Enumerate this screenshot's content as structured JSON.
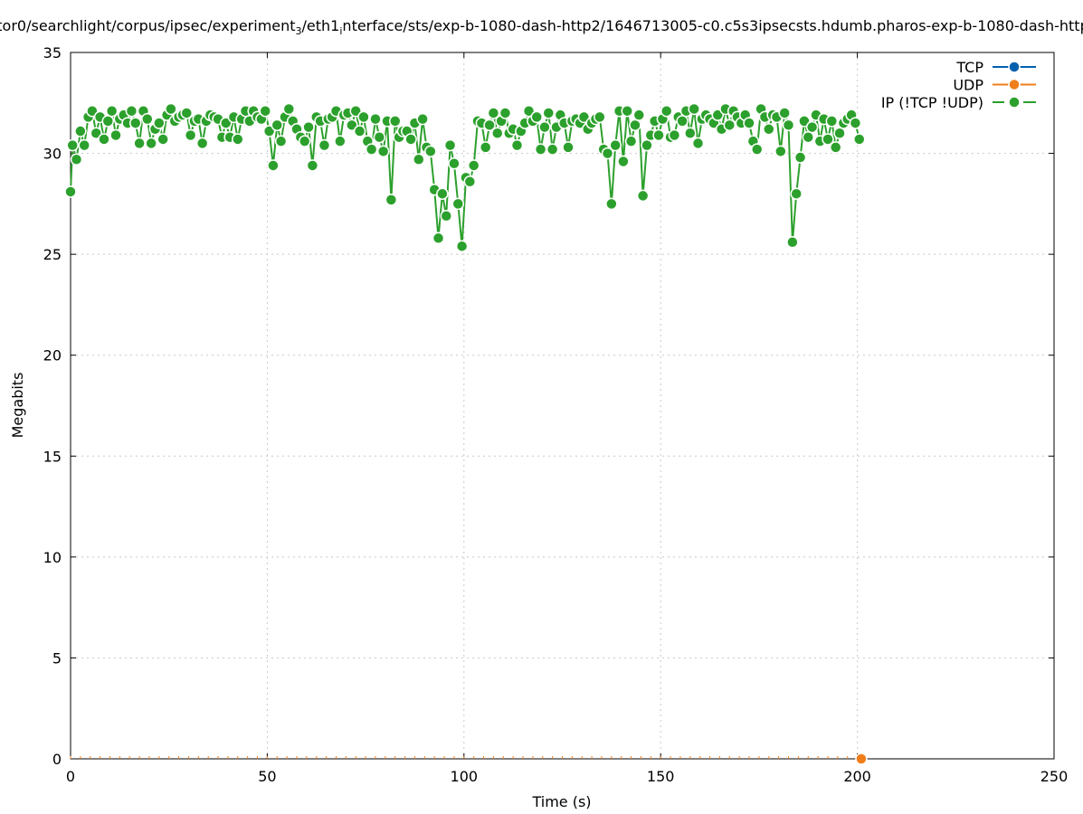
{
  "chart_data": {
    "type": "line",
    "title_main": "tor0/searchlight/corpus/ipsec/experiment",
    "title_sub1": "3",
    "title_mid": "/eth1",
    "title_sub2": "i",
    "title_end": "nterface/sts/exp-b-1080-dash-http2/1646713005-c0.c5s3ipsecsts.hdumb.pharos-exp-b-1080-dash-http",
    "xlabel": "Time (s)",
    "ylabel": "Megabits",
    "xlim": [
      0,
      250
    ],
    "ylim": [
      0,
      35
    ],
    "x_ticks": [
      0,
      50,
      100,
      150,
      200,
      250
    ],
    "y_ticks": [
      0,
      5,
      10,
      15,
      20,
      25,
      30,
      35
    ],
    "grid": true,
    "legend_position": "top-right",
    "colors": {
      "tcp": "#0060ad",
      "udp": "#f07d1a",
      "ip": "#2ca02c",
      "grid": "#c8c8c8"
    },
    "series": [
      {
        "name": "TCP",
        "key": "tcp",
        "x": [],
        "y": []
      },
      {
        "name": "UDP",
        "key": "udp",
        "x": [
          201
        ],
        "y": [
          0
        ]
      },
      {
        "name": "IP (!TCP  !UDP)",
        "key": "ip",
        "x": [
          0,
          0.5,
          1.5,
          2.5,
          3.5,
          4.5,
          5.5,
          6.5,
          7.5,
          8.5,
          9.5,
          10.5,
          11.5,
          12.5,
          13.5,
          14.5,
          15.5,
          16.5,
          17.5,
          18.5,
          19.5,
          20.5,
          21.5,
          22.5,
          23.5,
          24.5,
          25.5,
          26.5,
          27.5,
          28.5,
          29.5,
          30.5,
          31.5,
          32.5,
          33.5,
          34.5,
          35.5,
          36.5,
          37.5,
          38.5,
          39.5,
          40.5,
          41.5,
          42.5,
          43.5,
          44.5,
          45.5,
          46.5,
          47.5,
          48.5,
          49.5,
          50.5,
          51.5,
          52.5,
          53.5,
          54.5,
          55.5,
          56.5,
          57.5,
          58.5,
          59.5,
          60.5,
          61.5,
          62.5,
          63.5,
          64.5,
          65.5,
          66.5,
          67.5,
          68.5,
          69.5,
          70.5,
          71.5,
          72.5,
          73.5,
          74.5,
          75.5,
          76.5,
          77.5,
          78.5,
          79.5,
          80.5,
          81.5,
          82.5,
          83.5,
          84.5,
          85.5,
          86.5,
          87.5,
          88.5,
          89.5,
          90.5,
          91.5,
          92.5,
          93.5,
          94.5,
          95.5,
          96.5,
          97.5,
          98.5,
          99.5,
          100.5,
          101.5,
          102.5,
          103.5,
          104.5,
          105.5,
          106.5,
          107.5,
          108.5,
          109.5,
          110.5,
          111.5,
          112.5,
          113.5,
          114.5,
          115.5,
          116.5,
          117.5,
          118.5,
          119.5,
          120.5,
          121.5,
          122.5,
          123.5,
          124.5,
          125.5,
          126.5,
          127.5,
          128.5,
          129.5,
          130.5,
          131.5,
          132.5,
          133.5,
          134.5,
          135.5,
          136.5,
          137.5,
          138.5,
          139.5,
          140.5,
          141.5,
          142.5,
          143.5,
          144.5,
          145.5,
          146.5,
          147.5,
          148.5,
          149.5,
          150.5,
          151.5,
          152.5,
          153.5,
          154.5,
          155.5,
          156.5,
          157.5,
          158.5,
          159.5,
          160.5,
          161.5,
          162.5,
          163.5,
          164.5,
          165.5,
          166.5,
          167.5,
          168.5,
          169.5,
          170.5,
          171.5,
          172.5,
          173.5,
          174.5,
          175.5,
          176.5,
          177.5,
          178.5,
          179.5,
          180.5,
          181.5,
          182.5,
          183.5,
          184.5,
          185.5,
          186.5,
          187.5,
          188.5,
          189.5,
          190.5,
          191.5,
          192.5,
          193.5,
          194.5,
          195.5,
          196.5,
          197.5,
          198.5,
          199.5,
          200.5
        ],
        "y": [
          28.1,
          30.4,
          29.7,
          31.1,
          30.4,
          31.8,
          32.1,
          31.0,
          31.8,
          30.7,
          31.6,
          32.1,
          30.9,
          31.7,
          31.9,
          31.5,
          32.1,
          31.5,
          30.5,
          32.1,
          31.7,
          30.5,
          31.2,
          31.5,
          30.7,
          31.9,
          32.2,
          31.6,
          31.8,
          31.9,
          32.0,
          30.9,
          31.6,
          31.7,
          30.5,
          31.6,
          31.9,
          31.8,
          31.7,
          30.8,
          31.5,
          30.8,
          31.8,
          30.7,
          31.7,
          32.1,
          31.6,
          32.1,
          31.8,
          31.7,
          32.1,
          31.1,
          29.4,
          31.4,
          30.6,
          31.8,
          32.2,
          31.6,
          31.2,
          30.8,
          30.6,
          31.3,
          29.4,
          31.8,
          31.6,
          30.4,
          31.7,
          31.8,
          32.1,
          30.6,
          31.9,
          32.0,
          31.4,
          32.1,
          31.1,
          31.8,
          30.6,
          30.2,
          31.7,
          30.8,
          30.1,
          31.6,
          27.7,
          31.6,
          30.8,
          31.1,
          31.1,
          30.7,
          31.5,
          29.7,
          31.7,
          30.3,
          30.1,
          28.2,
          25.8,
          28.0,
          26.9,
          30.4,
          29.5,
          27.5,
          25.4,
          28.8,
          28.6,
          29.4,
          31.6,
          31.5,
          30.3,
          31.4,
          32.0,
          31.0,
          31.6,
          32.0,
          31.0,
          31.2,
          30.4,
          31.1,
          31.5,
          32.1,
          31.6,
          31.8,
          30.2,
          31.3,
          32.0,
          30.2,
          31.3,
          31.9,
          31.5,
          30.3,
          31.6,
          31.7,
          31.5,
          31.8,
          31.2,
          31.5,
          31.7,
          31.8,
          30.2,
          30.0,
          27.5,
          30.4,
          32.1,
          29.6,
          32.1,
          30.6,
          31.4,
          31.9,
          27.9,
          30.4,
          30.9,
          31.6,
          30.9,
          31.7,
          32.1,
          30.8,
          30.9,
          31.8,
          31.6,
          32.1,
          31.0,
          32.2,
          30.5,
          31.7,
          31.9,
          31.7,
          31.5,
          31.9,
          31.2,
          32.2,
          31.4,
          32.1,
          31.8,
          31.5,
          31.9,
          31.5,
          30.6,
          30.2,
          32.2,
          31.8,
          31.2,
          31.9,
          31.8,
          30.1,
          32.0,
          31.4,
          25.6,
          28.0,
          29.8,
          31.6,
          30.8,
          31.3,
          31.9,
          30.6,
          31.7,
          30.7,
          31.6,
          30.3,
          31.0,
          31.5,
          31.7,
          31.9,
          31.5,
          30.7
        ]
      }
    ]
  }
}
